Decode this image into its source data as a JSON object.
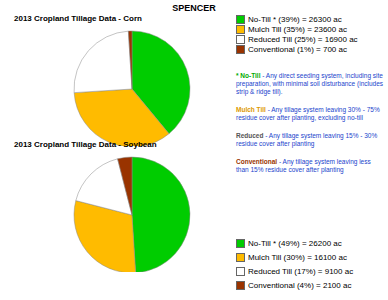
{
  "title": "SPENCER",
  "chart_data": [
    {
      "type": "pie",
      "title": "2013 Cropland Tillage Data - Corn",
      "categories": [
        "No-Till * (39%) = 26300 ac",
        "Mulch Till (35%) = 23600 ac",
        "Reduced Till (25%) = 16900 ac",
        "Conventional (1%) = 700 ac"
      ],
      "values": [
        39,
        35,
        25,
        1
      ],
      "colors": [
        "#00cc00",
        "#ffbb00",
        "#ffffff",
        "#993300"
      ],
      "legend": "right"
    },
    {
      "type": "pie",
      "title": "2013 Cropland Tillage Data - Soybean",
      "categories": [
        "No-Till * (49%) = 26200 ac",
        "Mulch Till (30%) = 16100 ac",
        "Reduced Till (17%) = 9100 ac",
        "Conventional (4%) = 2100 ac"
      ],
      "values": [
        49,
        30,
        17,
        4
      ],
      "colors": [
        "#00cc00",
        "#ffbb00",
        "#ffffff",
        "#993300"
      ],
      "legend": "right"
    }
  ],
  "definitions": [
    {
      "term": "* No-Till",
      "text": " - Any direct seeding system, including site preparation, with minimal soil disturbance (includes strip & ridge till)."
    },
    {
      "term": "Mulch Till",
      "text": " - Any tillage system leaving 30% - 75% residue cover after planting, excluding no-till"
    },
    {
      "term": "Reduced",
      "text": " - Any tillage system leaving 15% - 30% residue cover after planting"
    },
    {
      "term": "Conventional",
      "text": " - Any tillage system leaving less than 15% residue cover after planting"
    }
  ]
}
